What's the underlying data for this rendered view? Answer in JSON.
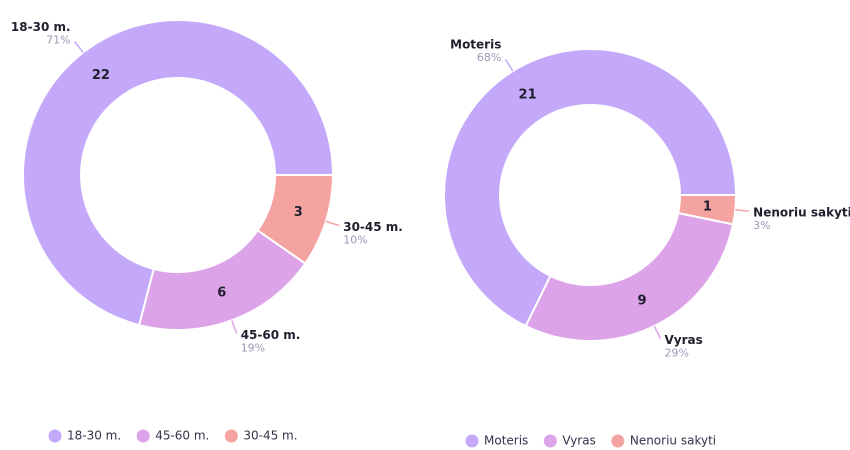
{
  "chart_data": [
    {
      "type": "donut",
      "categories": [
        "18-30 m.",
        "45-60 m.",
        "30-45 m."
      ],
      "values": [
        22,
        6,
        3
      ],
      "percent_labels": [
        "71%",
        "19%",
        "10%"
      ],
      "colors": [
        "#c4a9fb",
        "#dca3e8",
        "#f5a3a0"
      ]
    },
    {
      "type": "donut",
      "categories": [
        "Moteris",
        "Vyras",
        "Nenoriu sakyti"
      ],
      "values": [
        21,
        9,
        1
      ],
      "percent_labels": [
        "68%",
        "29%",
        "3%"
      ],
      "colors": [
        "#c4a9fb",
        "#dca3e8",
        "#f5a3a0"
      ]
    }
  ]
}
